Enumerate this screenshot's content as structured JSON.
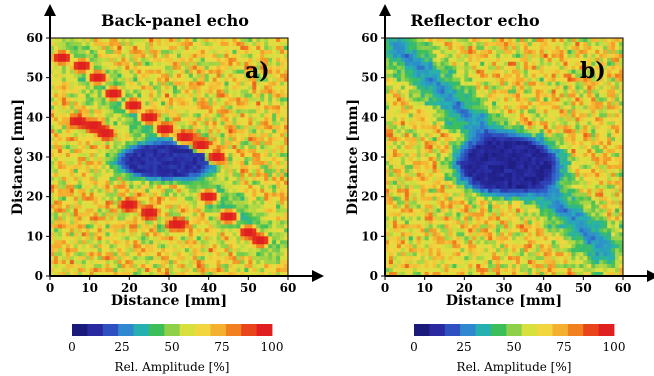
{
  "chart_data": [
    {
      "type": "heatmap",
      "title": "Back-panel echo",
      "panel_label": "a)",
      "xlabel": "Distance [mm]",
      "ylabel": "Distance [mm]",
      "xlim": [
        0,
        60
      ],
      "ylim": [
        0,
        60
      ],
      "x_ticks": [
        "0",
        "10",
        "20",
        "30",
        "40",
        "50",
        "60"
      ],
      "y_ticks": [
        "0",
        "10",
        "20",
        "30",
        "40",
        "50",
        "60"
      ],
      "background_amplitude": 65,
      "features": [
        {
          "kind": "diagonal_band_low",
          "from": [
            5,
            56
          ],
          "to": [
            55,
            8
          ],
          "halfwidth_mm": 7,
          "amplitude": 38
        },
        {
          "kind": "central_blob_low",
          "center": [
            29,
            29
          ],
          "radius_mm": [
            13,
            5
          ],
          "amplitude": 5
        },
        {
          "kind": "high_streaks",
          "amplitude": 100,
          "points": [
            [
              8,
              53
            ],
            [
              12,
              50
            ],
            [
              16,
              46
            ],
            [
              21,
              43
            ],
            [
              25,
              40
            ],
            [
              29,
              37
            ],
            [
              34,
              35
            ],
            [
              38,
              33
            ],
            [
              42,
              30
            ],
            [
              7,
              39
            ],
            [
              11,
              38
            ],
            [
              14,
              36
            ],
            [
              20,
              18
            ],
            [
              25,
              16
            ],
            [
              32,
              13
            ],
            [
              40,
              20
            ],
            [
              45,
              15
            ],
            [
              50,
              11
            ],
            [
              53,
              9
            ],
            [
              3,
              55
            ]
          ]
        }
      ]
    },
    {
      "type": "heatmap",
      "title": "Reflector echo",
      "panel_label": "b)",
      "xlabel": "Distance [mm]",
      "ylabel": "Distance [mm]",
      "xlim": [
        0,
        60
      ],
      "ylim": [
        0,
        60
      ],
      "x_ticks": [
        "0",
        "10",
        "20",
        "30",
        "40",
        "50",
        "60"
      ],
      "y_ticks": [
        "0",
        "10",
        "20",
        "30",
        "40",
        "50",
        "60"
      ],
      "background_amplitude": 65,
      "features": [
        {
          "kind": "diagonal_band_low",
          "from": [
            3,
            58
          ],
          "to": [
            55,
            7
          ],
          "halfwidth_mm": 8,
          "amplitude": 20
        },
        {
          "kind": "central_blob_low",
          "center": [
            31,
            28
          ],
          "radius_mm": [
            14,
            8
          ],
          "amplitude": 2
        }
      ]
    }
  ],
  "colorbar": {
    "label": "Rel. Amplitude [%]",
    "ticks": [
      "0",
      "25",
      "50",
      "75",
      "100"
    ],
    "range": [
      0,
      100
    ],
    "colors": [
      "#1a1a7a",
      "#2a2aa0",
      "#2f50c0",
      "#2f88d0",
      "#27b0b0",
      "#3cbf5a",
      "#8fd04a",
      "#d8e040",
      "#f2d640",
      "#f4b030",
      "#f08020",
      "#e8451c",
      "#e02020"
    ]
  }
}
